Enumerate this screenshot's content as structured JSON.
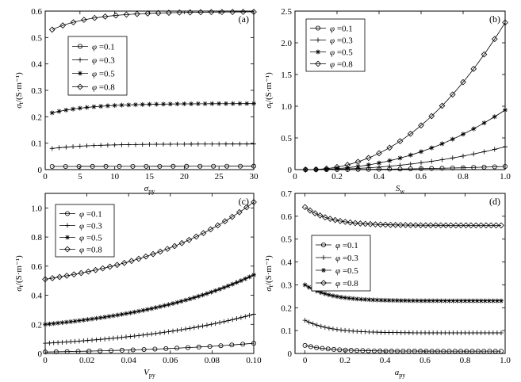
{
  "chart_data": [
    {
      "type": "line",
      "panel_label": "(a)",
      "xlabel": "σpy",
      "ylabel": "σt/(S·m⁻¹)",
      "xlim": [
        0,
        30
      ],
      "ylim": [
        0,
        0.6
      ],
      "xticks": [
        "0",
        "5",
        "10",
        "15",
        "20",
        "25",
        "30"
      ],
      "yticks": [
        "0",
        "0.1",
        "0.2",
        "0.3",
        "0.4",
        "0.5",
        "0.6"
      ],
      "legend_position": "left",
      "series": [
        {
          "name": "φ =0.1",
          "marker": "circle",
          "x": [
            1,
            30
          ],
          "y": [
            0.012,
            0.013
          ],
          "shape": "flat",
          "k": 5,
          "n_markers": 16
        },
        {
          "name": "φ =0.3",
          "marker": "plus",
          "x": [
            1,
            30
          ],
          "y": [
            0.08,
            0.097
          ],
          "shape": "saturate",
          "k": 5,
          "n_markers": 30
        },
        {
          "name": "φ =0.5",
          "marker": "star",
          "x": [
            1,
            30
          ],
          "y": [
            0.215,
            0.25
          ],
          "shape": "saturate",
          "k": 5,
          "n_markers": 30
        },
        {
          "name": "φ =0.8",
          "marker": "diamond",
          "x": [
            1,
            30
          ],
          "y": [
            0.53,
            0.597
          ],
          "shape": "saturate",
          "k": 5,
          "n_markers": 20
        }
      ]
    },
    {
      "type": "line",
      "panel_label": "(b)",
      "xlabel": "Sw",
      "ylabel": "σt/(S·m⁻¹)",
      "xlim": [
        0,
        1
      ],
      "ylim": [
        0,
        2.5
      ],
      "xticks": [
        "0",
        "0.2",
        "0.4",
        "0.6",
        "0.8",
        "1.0"
      ],
      "yticks": [
        "0",
        "0.5",
        "1.0",
        "1.5",
        "2.0",
        "2.5"
      ],
      "legend_position": "top-left",
      "series": [
        {
          "name": "φ =0.1",
          "marker": "circle",
          "x": [
            0.05,
            1.0
          ],
          "y": [
            0.0,
            0.05
          ],
          "shape": "power",
          "k": 2.2,
          "n_markers": 20
        },
        {
          "name": "φ =0.3",
          "marker": "plus",
          "x": [
            0.05,
            1.0
          ],
          "y": [
            0.0,
            0.36
          ],
          "shape": "power",
          "k": 2.2,
          "n_markers": 20
        },
        {
          "name": "φ =0.5",
          "marker": "star",
          "x": [
            0.05,
            1.0
          ],
          "y": [
            0.0,
            0.94
          ],
          "shape": "power",
          "k": 2.2,
          "n_markers": 20
        },
        {
          "name": "φ =0.8",
          "marker": "diamond",
          "x": [
            0.05,
            1.0
          ],
          "y": [
            0.0,
            2.32
          ],
          "shape": "power",
          "k": 2.2,
          "n_markers": 20
        }
      ]
    },
    {
      "type": "line",
      "panel_label": "(c)",
      "xlabel": "Vpy",
      "ylabel": "σt/(S·m⁻¹)",
      "xlim": [
        0,
        0.1
      ],
      "ylim": [
        0,
        1.1
      ],
      "xticks": [
        "0",
        "0.02",
        "0.04",
        "0.06",
        "0.08",
        "0.10"
      ],
      "yticks": [
        "0",
        "0.2",
        "0.4",
        "0.6",
        "0.8",
        "1.0"
      ],
      "legend_position": "top-left",
      "series": [
        {
          "name": "φ =0.1",
          "marker": "circle",
          "x": [
            0.0,
            0.1
          ],
          "y": [
            0.01,
            0.07
          ],
          "shape": "convex",
          "k": 1.6,
          "n_markers": 20
        },
        {
          "name": "φ =0.3",
          "marker": "plus",
          "x": [
            0.0,
            0.1
          ],
          "y": [
            0.07,
            0.27
          ],
          "shape": "convex",
          "k": 1.6,
          "n_markers": 50
        },
        {
          "name": "φ =0.5",
          "marker": "star",
          "x": [
            0.0,
            0.1
          ],
          "y": [
            0.2,
            0.54
          ],
          "shape": "convex",
          "k": 1.6,
          "n_markers": 50
        },
        {
          "name": "φ =0.8",
          "marker": "diamond",
          "x": [
            0.0,
            0.1
          ],
          "y": [
            0.51,
            1.04
          ],
          "shape": "convex",
          "k": 1.6,
          "n_markers": 30
        }
      ]
    },
    {
      "type": "line",
      "panel_label": "(d)",
      "xlabel": "apy",
      "ylabel": "σt/(S·m⁻¹)",
      "xlim": [
        -0.05,
        1.0
      ],
      "ylim": [
        0,
        0.7
      ],
      "xticks": [
        "0",
        "0.2",
        "0.4",
        "0.6",
        "0.8",
        "1.0"
      ],
      "yticks": [
        "0",
        "0.1",
        "0.2",
        "0.3",
        "0.4",
        "0.5",
        "0.6",
        "0.7"
      ],
      "legend_position": "left",
      "series": [
        {
          "name": "φ =0.1",
          "marker": "circle",
          "x": [
            0.0,
            0.98
          ],
          "y": [
            0.035,
            0.01
          ],
          "shape": "decay",
          "k": 8,
          "n_markers": 35
        },
        {
          "name": "φ =0.3",
          "marker": "plus",
          "x": [
            0.0,
            0.98
          ],
          "y": [
            0.145,
            0.09
          ],
          "shape": "decay",
          "k": 8,
          "n_markers": 50
        },
        {
          "name": "φ =0.5",
          "marker": "star",
          "x": [
            0.0,
            0.98
          ],
          "y": [
            0.3,
            0.23
          ],
          "shape": "decay",
          "k": 8,
          "n_markers": 50
        },
        {
          "name": "φ =0.8",
          "marker": "diamond",
          "x": [
            0.0,
            0.98
          ],
          "y": [
            0.64,
            0.56
          ],
          "shape": "decay",
          "k": 8,
          "n_markers": 40
        }
      ]
    }
  ]
}
